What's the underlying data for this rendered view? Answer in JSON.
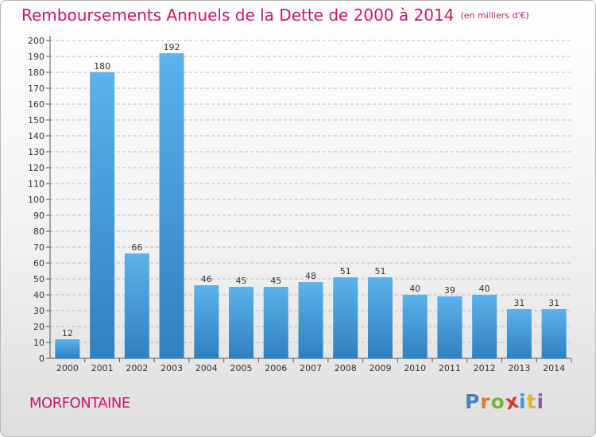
{
  "header": {
    "title": "Remboursements Annuels de la Dette de 2000 à 2014",
    "unit": "(en milliers d'€)"
  },
  "footer": {
    "city": "MORFONTAINE",
    "logo_letters": [
      "P",
      "r",
      "o",
      "x",
      "i",
      "t",
      "i"
    ],
    "logo_colors": [
      "#4a7fc4",
      "#e07b24",
      "#7ab638",
      "#d23c30",
      "#3a9ad6",
      "#e6b127",
      "#8e5aa8"
    ]
  },
  "colors": {
    "title": "#c8186f",
    "bar_light": "#5cb2ea",
    "bar_dark": "#2f80c0",
    "grid": "#bdbdbd"
  },
  "chart_data": {
    "type": "bar",
    "categories": [
      "2000",
      "2001",
      "2002",
      "2003",
      "2004",
      "2005",
      "2006",
      "2007",
      "2008",
      "2009",
      "2010",
      "2011",
      "2012",
      "2013",
      "2014"
    ],
    "values": [
      12,
      180,
      66,
      192,
      46,
      45,
      45,
      48,
      51,
      51,
      40,
      39,
      40,
      31,
      31
    ],
    "title": "Remboursements Annuels de la Dette de 2000 à 2014",
    "ylim": [
      0,
      200
    ],
    "ytick_step": 10,
    "grid": true,
    "data_labels": true
  }
}
